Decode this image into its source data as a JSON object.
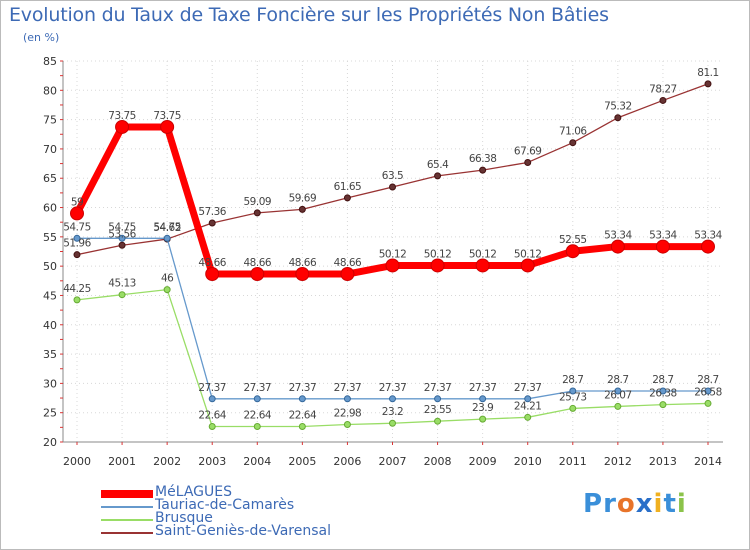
{
  "header": {
    "title": "Evolution du Taux de Taxe Foncière sur les Propriétés Non Bâties",
    "unit": "(en %)"
  },
  "logo": {
    "text": "Prox-iti",
    "letters": [
      "P",
      "r",
      "o",
      "x",
      "i",
      "t",
      "i"
    ],
    "colors": [
      "#3a8fd9",
      "#3a8fd9",
      "#e8742a",
      "#2a6fc9",
      "#f0b020",
      "#3a8fd9",
      "#8bc34a"
    ]
  },
  "chart_data": {
    "type": "line",
    "title": "Evolution du Taux de Taxe Foncière sur les Propriétés Non Bâties",
    "ylabel": "(en %)",
    "xlabel": "",
    "categories": [
      "2000",
      "2001",
      "2002",
      "2003",
      "2004",
      "2005",
      "2006",
      "2007",
      "2008",
      "2009",
      "2010",
      "2011",
      "2012",
      "2013",
      "2014"
    ],
    "ylim": [
      20,
      85
    ],
    "yticks": [
      20,
      25,
      30,
      35,
      40,
      45,
      50,
      55,
      60,
      65,
      70,
      75,
      80,
      85
    ],
    "grid": true,
    "legend_position": "bottom-left",
    "series": [
      {
        "name": "MéLAGUES",
        "color": "#ff0000",
        "values": [
          59,
          73.75,
          73.75,
          48.66,
          48.66,
          48.66,
          48.66,
          50.12,
          50.12,
          50.12,
          50.12,
          52.55,
          53.34,
          53.34,
          53.34
        ],
        "labels": [
          "59",
          "73.75",
          "73.75",
          "48.66",
          "48.66",
          "48.66",
          "48.66",
          "50.12",
          "50.12",
          "50.12",
          "50.12",
          "52.55",
          "53.34",
          "53.34",
          "53.34"
        ]
      },
      {
        "name": "Tauriac-de-Camarès",
        "color": "#6699cc",
        "values": [
          54.75,
          54.75,
          54.75,
          27.37,
          27.37,
          27.37,
          27.37,
          27.37,
          27.37,
          27.37,
          27.37,
          28.7,
          28.7,
          28.7,
          28.7
        ],
        "labels": [
          "54.75",
          "54.75",
          "54.75",
          "27.37",
          "27.37",
          "27.37",
          "27.37",
          "27.37",
          "27.37",
          "27.37",
          "27.37",
          "28.7",
          "28.7",
          "28.7",
          "28.7"
        ]
      },
      {
        "name": "Brusque",
        "color": "#99dd66",
        "values": [
          44.25,
          45.13,
          46,
          22.64,
          22.64,
          22.64,
          22.98,
          23.2,
          23.55,
          23.9,
          24.21,
          25.73,
          26.07,
          26.38,
          26.58
        ],
        "labels": [
          "44.25",
          "45.13",
          "46",
          "22.64",
          "22.64",
          "22.64",
          "22.98",
          "23.2",
          "23.55",
          "23.9",
          "24.21",
          "25.73",
          "26.07",
          "26.38",
          "26.58"
        ]
      },
      {
        "name": "Saint-Geniès-de-Varensal",
        "color": "#993333",
        "values": [
          51.96,
          53.56,
          54.62,
          57.36,
          59.09,
          59.69,
          61.65,
          63.5,
          65.4,
          66.38,
          67.69,
          71.06,
          75.32,
          78.27,
          81.1
        ],
        "labels": [
          "51.96",
          "53.56",
          "54.62",
          "57.36",
          "59.09",
          "59.69",
          "61.65",
          "63.5",
          "65.4",
          "66.38",
          "67.69",
          "71.06",
          "75.32",
          "78.27",
          "81.1"
        ]
      }
    ]
  }
}
